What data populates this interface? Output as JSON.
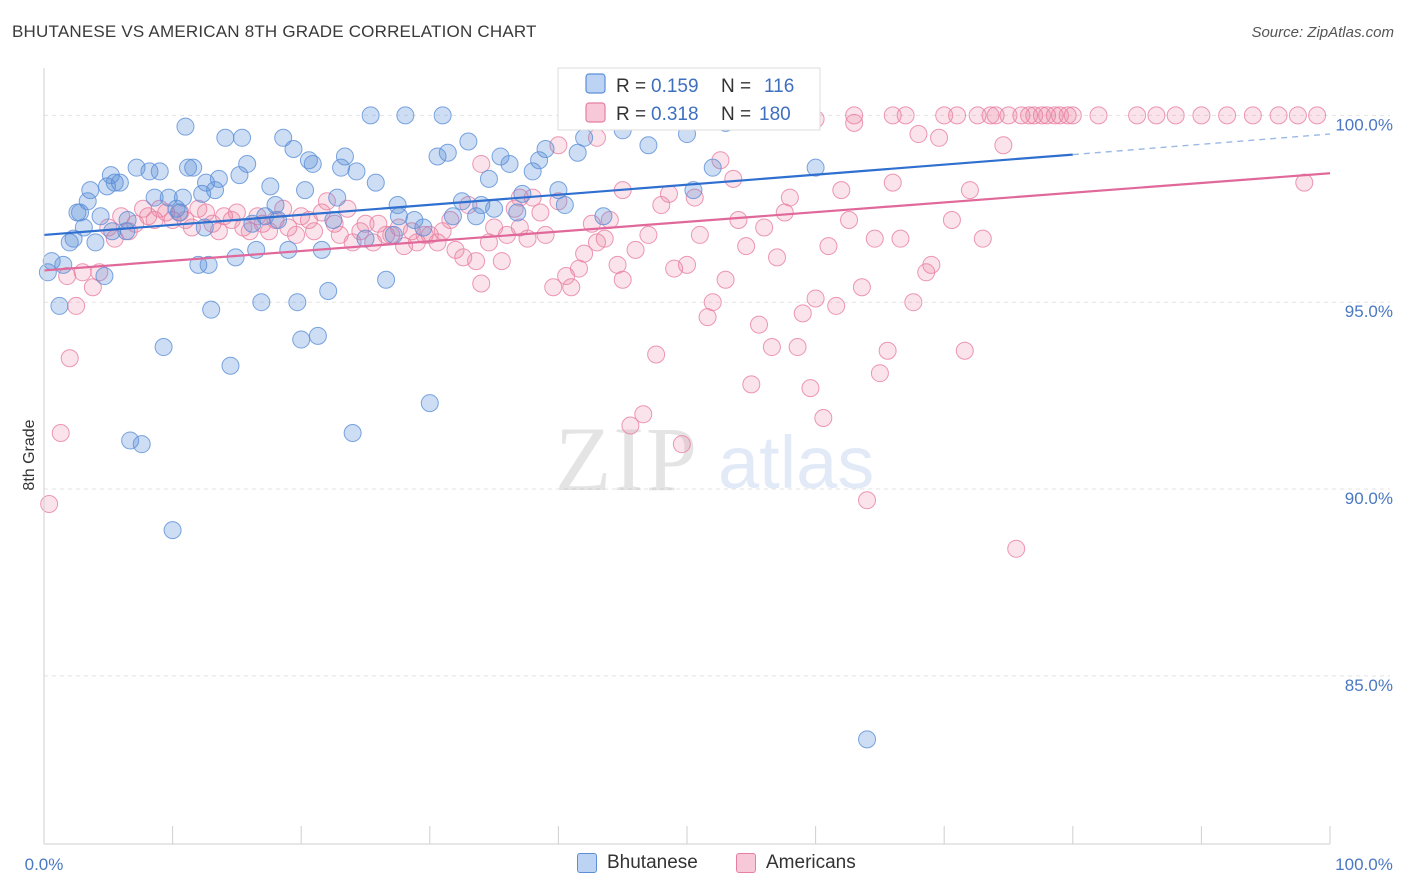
{
  "header": {
    "title": "BHUTANESE VS AMERICAN 8TH GRADE CORRELATION CHART",
    "source": "Source: ZipAtlas.com"
  },
  "watermark": {
    "zip": "ZIP",
    "atlas": "atlas"
  },
  "legend_top": {
    "rows": [
      {
        "r_label": "R = ",
        "r_value": "0.159",
        "n_label": "N = ",
        "n_value": "116",
        "color": "#5b8ed8"
      },
      {
        "r_label": "R = ",
        "r_value": "0.318",
        "n_label": "N = ",
        "n_value": "180",
        "color": "#e87ea1"
      }
    ]
  },
  "legend_bottom": {
    "items": [
      {
        "label": "Bhutanese",
        "color": "#5b8ed8"
      },
      {
        "label": "Americans",
        "color": "#e87ea1"
      }
    ]
  },
  "chart_data": {
    "type": "scatter",
    "title": "BHUTANESE VS AMERICAN 8TH GRADE CORRELATION CHART",
    "xlabel": "",
    "ylabel": "8th Grade",
    "x_tick_labels": [
      "0.0%",
      "100.0%"
    ],
    "y_tick_labels": [
      "100.0%",
      "95.0%",
      "90.0%",
      "85.0%"
    ],
    "y_ticks": [
      100,
      95,
      90,
      85
    ],
    "xlim": [
      0,
      100
    ],
    "ylim": [
      80.5,
      101
    ],
    "grid": true,
    "series": [
      {
        "name": "Bhutanese",
        "color": "#5b8ed8",
        "trend": {
          "x": [
            0,
            80
          ],
          "y": [
            96.8,
            98.95
          ],
          "dashed_to_x": 100,
          "dashed_to_y": 99.5
        },
        "points": [
          [
            0.3,
            95.8
          ],
          [
            0.6,
            96.1
          ],
          [
            1.2,
            94.9
          ],
          [
            1.5,
            96.0
          ],
          [
            2.0,
            96.6
          ],
          [
            2.3,
            96.7
          ],
          [
            2.6,
            97.4
          ],
          [
            2.8,
            97.4
          ],
          [
            3.1,
            97.0
          ],
          [
            3.4,
            97.7
          ],
          [
            3.6,
            98.0
          ],
          [
            4.0,
            96.6
          ],
          [
            4.4,
            97.3
          ],
          [
            4.7,
            95.7
          ],
          [
            4.9,
            98.1
          ],
          [
            5.2,
            98.4
          ],
          [
            5.3,
            96.9
          ],
          [
            5.5,
            98.2
          ],
          [
            5.9,
            98.2
          ],
          [
            6.4,
            96.9
          ],
          [
            6.7,
            91.3
          ],
          [
            7.2,
            98.6
          ],
          [
            7.6,
            91.2
          ],
          [
            8.2,
            98.5
          ],
          [
            8.6,
            97.8
          ],
          [
            9.0,
            98.5
          ],
          [
            9.3,
            93.8
          ],
          [
            9.7,
            97.8
          ],
          [
            10.0,
            88.9
          ],
          [
            10.3,
            97.5
          ],
          [
            10.5,
            97.4
          ],
          [
            10.8,
            97.8
          ],
          [
            11.0,
            99.7
          ],
          [
            11.2,
            98.6
          ],
          [
            11.6,
            98.6
          ],
          [
            12.0,
            96.0
          ],
          [
            12.3,
            97.9
          ],
          [
            12.6,
            98.2
          ],
          [
            12.8,
            96.0
          ],
          [
            13.0,
            94.8
          ],
          [
            13.3,
            98.0
          ],
          [
            13.6,
            98.3
          ],
          [
            14.1,
            99.4
          ],
          [
            14.5,
            93.3
          ],
          [
            14.9,
            96.2
          ],
          [
            15.2,
            98.4
          ],
          [
            15.4,
            99.4
          ],
          [
            15.8,
            98.7
          ],
          [
            16.2,
            97.1
          ],
          [
            16.5,
            96.4
          ],
          [
            16.9,
            95.0
          ],
          [
            17.2,
            97.3
          ],
          [
            17.6,
            98.1
          ],
          [
            18.0,
            97.6
          ],
          [
            18.2,
            97.2
          ],
          [
            18.6,
            99.4
          ],
          [
            19.0,
            96.4
          ],
          [
            19.4,
            99.1
          ],
          [
            19.7,
            95.0
          ],
          [
            20.0,
            94.0
          ],
          [
            20.3,
            98.0
          ],
          [
            20.6,
            98.8
          ],
          [
            20.9,
            98.7
          ],
          [
            21.3,
            94.1
          ],
          [
            21.6,
            96.4
          ],
          [
            22.1,
            95.3
          ],
          [
            22.5,
            97.2
          ],
          [
            22.8,
            97.8
          ],
          [
            23.1,
            98.6
          ],
          [
            23.4,
            98.9
          ],
          [
            24.0,
            91.5
          ],
          [
            24.3,
            98.5
          ],
          [
            25.0,
            96.7
          ],
          [
            25.4,
            100.0
          ],
          [
            25.8,
            98.2
          ],
          [
            26.6,
            95.6
          ],
          [
            27.2,
            96.8
          ],
          [
            27.6,
            97.3
          ],
          [
            28.1,
            100.0
          ],
          [
            28.8,
            97.2
          ],
          [
            29.5,
            97.0
          ],
          [
            30.0,
            92.3
          ],
          [
            30.6,
            98.9
          ],
          [
            31.0,
            100.0
          ],
          [
            31.4,
            99.0
          ],
          [
            31.8,
            97.3
          ],
          [
            32.5,
            97.7
          ],
          [
            33.0,
            99.3
          ],
          [
            33.6,
            97.3
          ],
          [
            34.0,
            97.6
          ],
          [
            34.6,
            98.3
          ],
          [
            35.0,
            97.5
          ],
          [
            35.5,
            98.9
          ],
          [
            36.2,
            98.7
          ],
          [
            36.8,
            97.4
          ],
          [
            37.2,
            97.9
          ],
          [
            38.0,
            98.5
          ],
          [
            38.5,
            98.8
          ],
          [
            39.0,
            99.1
          ],
          [
            40.0,
            98.0
          ],
          [
            40.5,
            97.6
          ],
          [
            41.5,
            99.0
          ],
          [
            42.0,
            99.4
          ],
          [
            43.5,
            97.3
          ],
          [
            45.0,
            99.6
          ],
          [
            47.0,
            99.2
          ],
          [
            50.5,
            98.0
          ],
          [
            52.0,
            98.6
          ],
          [
            53.0,
            99.8
          ],
          [
            60.0,
            98.6
          ],
          [
            64.0,
            83.3
          ],
          [
            50.0,
            99.5
          ],
          [
            57.0,
            100.0
          ],
          [
            27.5,
            97.6
          ],
          [
            12.5,
            97.0
          ],
          [
            6.5,
            97.2
          ]
        ]
      },
      {
        "name": "Americans",
        "color": "#e87ea1",
        "trend": {
          "x": [
            0,
            100
          ],
          "y": [
            95.85,
            98.45
          ]
        },
        "points": [
          [
            0.4,
            89.6
          ],
          [
            1.3,
            91.5
          ],
          [
            1.8,
            95.7
          ],
          [
            2.0,
            93.5
          ],
          [
            2.5,
            94.9
          ],
          [
            3.0,
            95.8
          ],
          [
            3.8,
            95.4
          ],
          [
            4.3,
            95.8
          ],
          [
            5.0,
            97.0
          ],
          [
            5.5,
            96.7
          ],
          [
            6.0,
            97.3
          ],
          [
            6.6,
            96.9
          ],
          [
            7.1,
            97.1
          ],
          [
            7.7,
            97.5
          ],
          [
            8.1,
            97.3
          ],
          [
            8.6,
            97.2
          ],
          [
            9.0,
            97.5
          ],
          [
            9.5,
            97.4
          ],
          [
            10.0,
            97.2
          ],
          [
            10.6,
            97.4
          ],
          [
            11.0,
            97.2
          ],
          [
            11.5,
            97.0
          ],
          [
            12.0,
            97.5
          ],
          [
            12.6,
            97.4
          ],
          [
            13.1,
            97.1
          ],
          [
            13.6,
            96.9
          ],
          [
            14.0,
            97.3
          ],
          [
            14.6,
            97.2
          ],
          [
            15.0,
            97.4
          ],
          [
            15.5,
            97.0
          ],
          [
            16.0,
            96.9
          ],
          [
            16.6,
            97.3
          ],
          [
            17.0,
            97.1
          ],
          [
            17.5,
            96.9
          ],
          [
            18.0,
            97.2
          ],
          [
            18.6,
            97.5
          ],
          [
            19.0,
            97.0
          ],
          [
            19.6,
            96.8
          ],
          [
            20.0,
            97.3
          ],
          [
            20.6,
            97.2
          ],
          [
            21.0,
            96.9
          ],
          [
            21.6,
            97.4
          ],
          [
            22.0,
            97.7
          ],
          [
            22.6,
            97.1
          ],
          [
            23.0,
            96.8
          ],
          [
            23.6,
            97.5
          ],
          [
            24.0,
            96.6
          ],
          [
            24.6,
            96.9
          ],
          [
            25.0,
            97.1
          ],
          [
            25.6,
            96.6
          ],
          [
            26.0,
            97.1
          ],
          [
            26.6,
            96.8
          ],
          [
            27.0,
            96.8
          ],
          [
            27.6,
            97.0
          ],
          [
            28.0,
            96.5
          ],
          [
            28.6,
            96.9
          ],
          [
            29.0,
            96.6
          ],
          [
            29.6,
            96.8
          ],
          [
            30.0,
            96.8
          ],
          [
            30.6,
            96.6
          ],
          [
            31.0,
            96.9
          ],
          [
            31.6,
            97.2
          ],
          [
            32.0,
            96.4
          ],
          [
            32.6,
            96.2
          ],
          [
            33.0,
            97.6
          ],
          [
            33.6,
            96.1
          ],
          [
            34.0,
            95.5
          ],
          [
            34.6,
            96.6
          ],
          [
            35.0,
            97.0
          ],
          [
            35.6,
            96.1
          ],
          [
            36.0,
            96.8
          ],
          [
            36.6,
            97.5
          ],
          [
            37.0,
            97.0
          ],
          [
            37.6,
            96.7
          ],
          [
            38.0,
            97.8
          ],
          [
            38.6,
            97.4
          ],
          [
            39.0,
            96.8
          ],
          [
            39.6,
            95.4
          ],
          [
            40.0,
            97.7
          ],
          [
            40.6,
            95.7
          ],
          [
            41.0,
            95.4
          ],
          [
            41.6,
            95.9
          ],
          [
            42.0,
            96.3
          ],
          [
            42.6,
            97.1
          ],
          [
            43.0,
            96.6
          ],
          [
            43.6,
            96.7
          ],
          [
            44.0,
            97.2
          ],
          [
            44.6,
            96.0
          ],
          [
            45.0,
            95.6
          ],
          [
            45.6,
            91.7
          ],
          [
            46.0,
            96.4
          ],
          [
            46.6,
            92.0
          ],
          [
            47.0,
            96.8
          ],
          [
            47.6,
            93.6
          ],
          [
            48.0,
            97.6
          ],
          [
            48.6,
            97.9
          ],
          [
            49.0,
            95.9
          ],
          [
            49.6,
            91.2
          ],
          [
            50.0,
            96.0
          ],
          [
            50.6,
            97.8
          ],
          [
            51.0,
            96.8
          ],
          [
            51.6,
            94.6
          ],
          [
            52.0,
            95.0
          ],
          [
            52.6,
            98.8
          ],
          [
            53.0,
            95.6
          ],
          [
            53.6,
            98.3
          ],
          [
            54.0,
            97.2
          ],
          [
            54.6,
            96.5
          ],
          [
            55.0,
            92.8
          ],
          [
            55.6,
            94.4
          ],
          [
            56.0,
            97.0
          ],
          [
            56.6,
            93.8
          ],
          [
            57.0,
            96.2
          ],
          [
            57.6,
            97.4
          ],
          [
            58.0,
            97.8
          ],
          [
            58.6,
            93.8
          ],
          [
            59.0,
            94.7
          ],
          [
            59.6,
            92.7
          ],
          [
            60.0,
            95.1
          ],
          [
            60.6,
            91.9
          ],
          [
            61.0,
            96.5
          ],
          [
            61.6,
            94.9
          ],
          [
            62.0,
            98.0
          ],
          [
            62.6,
            97.2
          ],
          [
            63.0,
            99.8
          ],
          [
            63.6,
            95.4
          ],
          [
            64.0,
            89.7
          ],
          [
            64.6,
            96.7
          ],
          [
            65.0,
            93.1
          ],
          [
            65.6,
            93.7
          ],
          [
            66.0,
            98.2
          ],
          [
            66.6,
            96.7
          ],
          [
            67.0,
            100.0
          ],
          [
            67.6,
            95.0
          ],
          [
            68.0,
            99.5
          ],
          [
            68.6,
            95.8
          ],
          [
            69.0,
            96.0
          ],
          [
            69.6,
            99.4
          ],
          [
            70.0,
            100.0
          ],
          [
            70.6,
            97.2
          ],
          [
            71.0,
            100.0
          ],
          [
            71.6,
            93.7
          ],
          [
            72.0,
            98.0
          ],
          [
            72.6,
            100.0
          ],
          [
            73.0,
            96.7
          ],
          [
            73.6,
            100.0
          ],
          [
            74.0,
            100.0
          ],
          [
            74.6,
            99.2
          ],
          [
            75.0,
            100.0
          ],
          [
            75.6,
            88.4
          ],
          [
            76.0,
            100.0
          ],
          [
            76.6,
            100.0
          ],
          [
            77.0,
            100.0
          ],
          [
            77.6,
            100.0
          ],
          [
            78.0,
            100.0
          ],
          [
            78.6,
            100.0
          ],
          [
            79.0,
            100.0
          ],
          [
            79.6,
            100.0
          ],
          [
            80.0,
            100.0
          ],
          [
            98.0,
            98.2
          ],
          [
            45.0,
            98.0
          ],
          [
            43.0,
            99.4
          ],
          [
            37.0,
            97.8
          ],
          [
            66.0,
            100.0
          ],
          [
            63.0,
            100.0
          ],
          [
            60.0,
            99.9
          ],
          [
            58.0,
            100.0
          ],
          [
            55.0,
            100.0
          ],
          [
            40.0,
            99.2
          ],
          [
            34.0,
            98.7
          ],
          [
            82.0,
            100.0
          ],
          [
            85.0,
            100.0
          ],
          [
            86.5,
            100.0
          ],
          [
            88.0,
            100.0
          ],
          [
            90.0,
            100.0
          ],
          [
            92.0,
            100.0
          ],
          [
            94.0,
            100.0
          ],
          [
            96.0,
            100.0
          ],
          [
            97.5,
            100.0
          ],
          [
            99.0,
            100.0
          ]
        ]
      }
    ]
  }
}
